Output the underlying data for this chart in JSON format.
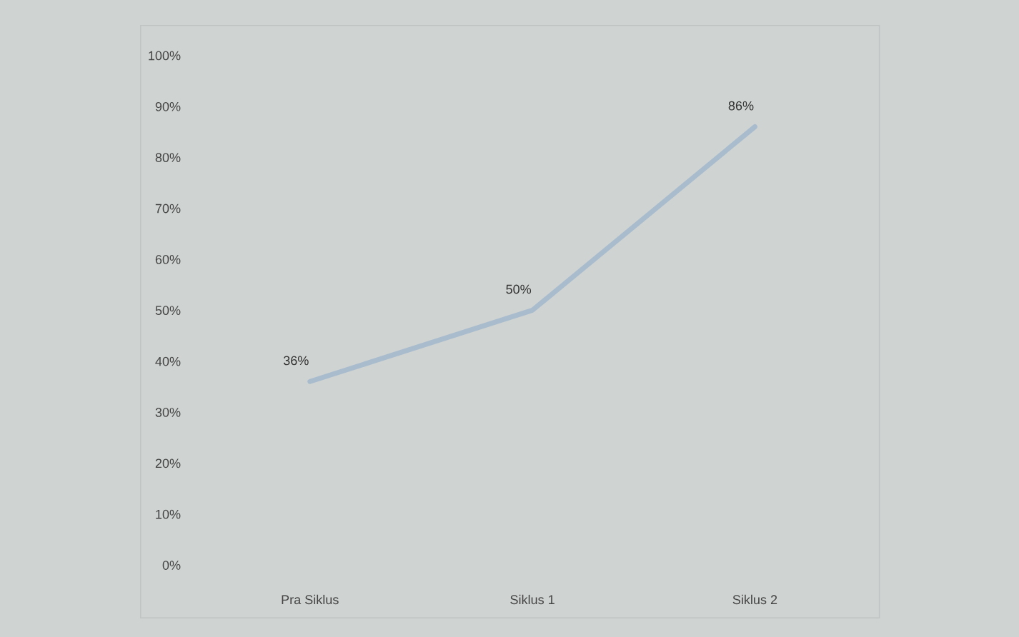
{
  "chart_data": {
    "type": "line",
    "categories": [
      "Pra Siklus",
      "Siklus 1",
      "Siklus 2"
    ],
    "series": [
      {
        "color": "#a9bccd",
        "values": [
          36,
          50,
          86
        ],
        "value_labels": [
          "36%",
          "50%",
          "86%"
        ]
      }
    ],
    "ylim": [
      0,
      100
    ],
    "yticks": [
      {
        "value": 0,
        "label": "0%"
      },
      {
        "value": 10,
        "label": "10%"
      },
      {
        "value": 20,
        "label": "20%"
      },
      {
        "value": 30,
        "label": "30%"
      },
      {
        "value": 40,
        "label": "40%"
      },
      {
        "value": 50,
        "label": "50%"
      },
      {
        "value": 60,
        "label": "60%"
      },
      {
        "value": 70,
        "label": "70%"
      },
      {
        "value": 80,
        "label": "80%"
      },
      {
        "value": 90,
        "label": "90%"
      },
      {
        "value": 100,
        "label": "100%"
      }
    ],
    "marker": "none",
    "line_style": "solid"
  }
}
